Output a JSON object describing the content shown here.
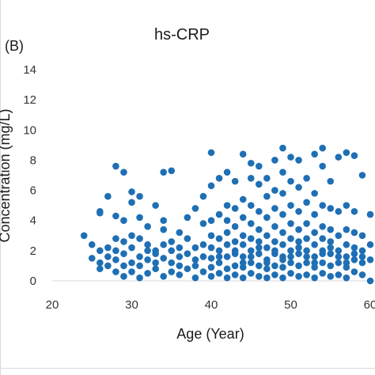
{
  "panel_label": "(B)",
  "chart_data": {
    "type": "scatter",
    "title": "hs-CRP",
    "xlabel": "Age (Year)",
    "ylabel": "Concentration (mg/L)",
    "xlim": [
      20,
      60
    ],
    "ylim": [
      0,
      14
    ],
    "xticks": [
      "20",
      "30",
      "40",
      "50",
      "60"
    ],
    "yticks": [
      "0",
      "2",
      "4",
      "6",
      "8",
      "10",
      "12",
      "14"
    ],
    "grid": false,
    "marker_color": "#1f6fb4",
    "points": [
      [
        24,
        3.0
      ],
      [
        25,
        2.4
      ],
      [
        25,
        1.5
      ],
      [
        26,
        1.2
      ],
      [
        26,
        0.8
      ],
      [
        26,
        2.0
      ],
      [
        26,
        4.6
      ],
      [
        26,
        4.5
      ],
      [
        27,
        1.6
      ],
      [
        27,
        1.0
      ],
      [
        27,
        2.2
      ],
      [
        27,
        5.6
      ],
      [
        28,
        0.6
      ],
      [
        28,
        1.4
      ],
      [
        28,
        2.0
      ],
      [
        28,
        2.8
      ],
      [
        28,
        4.3
      ],
      [
        28,
        7.6
      ],
      [
        29,
        1.0
      ],
      [
        29,
        1.8
      ],
      [
        29,
        2.6
      ],
      [
        29,
        7.2
      ],
      [
        29,
        4.0
      ],
      [
        29,
        0.3
      ],
      [
        30,
        0.6
      ],
      [
        30,
        1.2
      ],
      [
        30,
        2.2
      ],
      [
        30,
        3.0
      ],
      [
        30,
        5.2
      ],
      [
        30,
        5.9
      ],
      [
        31,
        0.2
      ],
      [
        31,
        1.6
      ],
      [
        31,
        2.8
      ],
      [
        31,
        4.2
      ],
      [
        31,
        5.6
      ],
      [
        31,
        1.0
      ],
      [
        32,
        0.5
      ],
      [
        32,
        1.4
      ],
      [
        32,
        2.4
      ],
      [
        32,
        3.6
      ],
      [
        32,
        2.0
      ],
      [
        33,
        0.8
      ],
      [
        33,
        1.8
      ],
      [
        33,
        2.0
      ],
      [
        33,
        5.0
      ],
      [
        33,
        1.2
      ],
      [
        34,
        0.3
      ],
      [
        34,
        1.5
      ],
      [
        34,
        2.4
      ],
      [
        34,
        4.0
      ],
      [
        34,
        7.2
      ],
      [
        34,
        3.4
      ],
      [
        35,
        0.6
      ],
      [
        35,
        1.2
      ],
      [
        35,
        2.6
      ],
      [
        35,
        7.3
      ],
      [
        35,
        2.0
      ],
      [
        36,
        0.4
      ],
      [
        36,
        1.6
      ],
      [
        36,
        2.2
      ],
      [
        36,
        3.2
      ],
      [
        36,
        1.0
      ],
      [
        37,
        0.8
      ],
      [
        37,
        1.8
      ],
      [
        37,
        2.8
      ],
      [
        37,
        4.2
      ],
      [
        38,
        0.2
      ],
      [
        38,
        1.4
      ],
      [
        38,
        2.2
      ],
      [
        38,
        4.8
      ],
      [
        38,
        1.0
      ],
      [
        39,
        0.6
      ],
      [
        39,
        1.6
      ],
      [
        39,
        2.4
      ],
      [
        39,
        3.8
      ],
      [
        39,
        5.6
      ],
      [
        40,
        0.3
      ],
      [
        40,
        0.9
      ],
      [
        40,
        1.5
      ],
      [
        40,
        2.2
      ],
      [
        40,
        3.0
      ],
      [
        40,
        4.0
      ],
      [
        40,
        6.3
      ],
      [
        40,
        8.5
      ],
      [
        41,
        0.5
      ],
      [
        41,
        1.2
      ],
      [
        41,
        2.0
      ],
      [
        41,
        2.8
      ],
      [
        41,
        4.4
      ],
      [
        41,
        6.8
      ],
      [
        41,
        1.6
      ],
      [
        42,
        0.2
      ],
      [
        42,
        0.8
      ],
      [
        42,
        1.6
      ],
      [
        42,
        2.4
      ],
      [
        42,
        3.2
      ],
      [
        42,
        5.0
      ],
      [
        42,
        7.2
      ],
      [
        42,
        4.0
      ],
      [
        43,
        0.4
      ],
      [
        43,
        1.0
      ],
      [
        43,
        1.8
      ],
      [
        43,
        2.6
      ],
      [
        43,
        3.6
      ],
      [
        43,
        4.8
      ],
      [
        43,
        6.6
      ],
      [
        43,
        2.0
      ],
      [
        44,
        0.2
      ],
      [
        44,
        0.9
      ],
      [
        44,
        1.6
      ],
      [
        44,
        2.4
      ],
      [
        44,
        3.0
      ],
      [
        44,
        4.2
      ],
      [
        44,
        5.4
      ],
      [
        44,
        8.4
      ],
      [
        44,
        1.2
      ],
      [
        45,
        0.5
      ],
      [
        45,
        1.2
      ],
      [
        45,
        2.0
      ],
      [
        45,
        2.8
      ],
      [
        45,
        3.8
      ],
      [
        45,
        5.0
      ],
      [
        45,
        6.8
      ],
      [
        45,
        7.8
      ],
      [
        45,
        1.6
      ],
      [
        46,
        0.3
      ],
      [
        46,
        1.0
      ],
      [
        46,
        1.8
      ],
      [
        46,
        2.6
      ],
      [
        46,
        3.4
      ],
      [
        46,
        4.6
      ],
      [
        46,
        6.4
      ],
      [
        46,
        7.6
      ],
      [
        46,
        2.2
      ],
      [
        47,
        0.2
      ],
      [
        47,
        0.8
      ],
      [
        47,
        1.4
      ],
      [
        47,
        2.2
      ],
      [
        47,
        3.0
      ],
      [
        47,
        4.2
      ],
      [
        47,
        5.6
      ],
      [
        47,
        6.8
      ],
      [
        47,
        1.2
      ],
      [
        48,
        0.4
      ],
      [
        48,
        1.0
      ],
      [
        48,
        1.8
      ],
      [
        48,
        2.6
      ],
      [
        48,
        3.6
      ],
      [
        48,
        4.8
      ],
      [
        48,
        6.0
      ],
      [
        48,
        8.0
      ],
      [
        48,
        2.0
      ],
      [
        49,
        0.2
      ],
      [
        49,
        0.9
      ],
      [
        49,
        1.6
      ],
      [
        49,
        2.4
      ],
      [
        49,
        3.2
      ],
      [
        49,
        4.4
      ],
      [
        49,
        5.8
      ],
      [
        49,
        7.2
      ],
      [
        49,
        8.8
      ],
      [
        49,
        1.4
      ],
      [
        50,
        0.5
      ],
      [
        50,
        1.2
      ],
      [
        50,
        2.0
      ],
      [
        50,
        2.8
      ],
      [
        50,
        3.8
      ],
      [
        50,
        5.0
      ],
      [
        50,
        6.6
      ],
      [
        50,
        8.2
      ],
      [
        50,
        1.6
      ],
      [
        51,
        0.3
      ],
      [
        51,
        1.0
      ],
      [
        51,
        1.8
      ],
      [
        51,
        2.6
      ],
      [
        51,
        3.4
      ],
      [
        51,
        4.6
      ],
      [
        51,
        6.2
      ],
      [
        51,
        8.0
      ],
      [
        51,
        2.2
      ],
      [
        52,
        0.4
      ],
      [
        52,
        1.2
      ],
      [
        52,
        2.0
      ],
      [
        52,
        2.8
      ],
      [
        52,
        3.8
      ],
      [
        52,
        5.2
      ],
      [
        52,
        6.8
      ],
      [
        52,
        1.6
      ],
      [
        53,
        0.2
      ],
      [
        53,
        0.9
      ],
      [
        53,
        1.6
      ],
      [
        53,
        2.4
      ],
      [
        53,
        3.2
      ],
      [
        53,
        4.4
      ],
      [
        53,
        5.8
      ],
      [
        53,
        8.4
      ],
      [
        53,
        1.2
      ],
      [
        54,
        0.5
      ],
      [
        54,
        1.2
      ],
      [
        54,
        2.0
      ],
      [
        54,
        2.8
      ],
      [
        54,
        3.6
      ],
      [
        54,
        5.0
      ],
      [
        54,
        7.6
      ],
      [
        54,
        8.8
      ],
      [
        54,
        1.8
      ],
      [
        55,
        0.3
      ],
      [
        55,
        1.0
      ],
      [
        55,
        1.8
      ],
      [
        55,
        2.6
      ],
      [
        55,
        3.4
      ],
      [
        55,
        4.8
      ],
      [
        55,
        6.6
      ],
      [
        55,
        2.2
      ],
      [
        56,
        0.4
      ],
      [
        56,
        1.2
      ],
      [
        56,
        2.0
      ],
      [
        56,
        3.0
      ],
      [
        56,
        4.6
      ],
      [
        56,
        8.2
      ],
      [
        56,
        1.6
      ],
      [
        57,
        0.2
      ],
      [
        57,
        0.9
      ],
      [
        57,
        1.6
      ],
      [
        57,
        2.4
      ],
      [
        57,
        3.4
      ],
      [
        57,
        5.0
      ],
      [
        57,
        8.5
      ],
      [
        57,
        1.2
      ],
      [
        58,
        0.6
      ],
      [
        58,
        1.4
      ],
      [
        58,
        2.2
      ],
      [
        58,
        3.2
      ],
      [
        58,
        4.6
      ],
      [
        58,
        8.3
      ],
      [
        58,
        1.8
      ],
      [
        59,
        0.4
      ],
      [
        59,
        1.2
      ],
      [
        59,
        2.0
      ],
      [
        59,
        3.0
      ],
      [
        59,
        7.0
      ],
      [
        59,
        1.6
      ],
      [
        60,
        0.0
      ],
      [
        60,
        1.4
      ],
      [
        60,
        2.4
      ],
      [
        60,
        4.4
      ]
    ]
  }
}
